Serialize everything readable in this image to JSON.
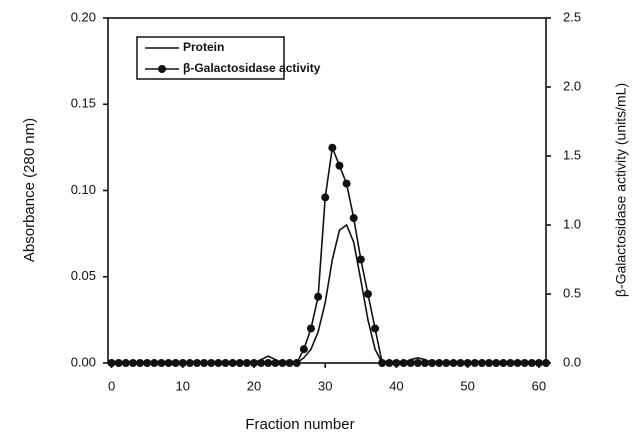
{
  "chart_data": {
    "type": "line",
    "x_label": "Fraction number",
    "y_label": "Absorbance (280 nm)",
    "y2_label": "β-Galactosidase activity (units/mL)",
    "xlim": [
      -0.5,
      61
    ],
    "xticks": [
      0,
      10,
      20,
      30,
      40,
      50,
      60
    ],
    "ylim": [
      0,
      0.2
    ],
    "yticks": [
      {
        "value": 0,
        "label": "0.00"
      },
      0.05,
      {
        "value": 0.1,
        "label": "0.10"
      },
      0.15,
      {
        "value": 0.2,
        "label": "0.20"
      }
    ],
    "y2lim": [
      0,
      2.5
    ],
    "y2ticks": [
      {
        "value": 0,
        "label": "0.0"
      },
      0.5,
      {
        "value": 1,
        "label": "1.0"
      },
      1.5,
      {
        "value": 2,
        "label": "2.0"
      },
      2.5
    ],
    "legend": "upper left",
    "series": [
      {
        "name": "Protein",
        "color": "#111111",
        "marker": false,
        "x": [
          0,
          20,
          21,
          22,
          23,
          24,
          26,
          27,
          28,
          29,
          30,
          31,
          32,
          33,
          34,
          35,
          36,
          37,
          38,
          41,
          42,
          43,
          44,
          45,
          61
        ],
        "values": [
          0,
          0,
          0.002,
          0.004,
          0.002,
          0,
          0,
          0.003,
          0.008,
          0.018,
          0.035,
          0.06,
          0.077,
          0.08,
          0.07,
          0.048,
          0.025,
          0.008,
          0,
          0,
          0.002,
          0.003,
          0.002,
          0,
          0
        ]
      },
      {
        "name": "β-Galactosidase activity",
        "color": "#111111",
        "marker": true,
        "axis": "y2",
        "x": [
          0,
          1,
          2,
          3,
          4,
          5,
          6,
          7,
          8,
          9,
          10,
          11,
          12,
          13,
          14,
          15,
          16,
          17,
          18,
          19,
          20,
          21,
          22,
          23,
          24,
          25,
          26,
          27,
          28,
          29,
          30,
          31,
          32,
          33,
          34,
          35,
          36,
          37,
          38,
          39,
          40,
          41,
          42,
          43,
          44,
          45,
          46,
          47,
          48,
          49,
          50,
          51,
          52,
          53,
          54,
          55,
          56,
          57,
          58,
          59,
          60,
          61
        ],
        "values": [
          0,
          0,
          0,
          0,
          0,
          0,
          0,
          0,
          0,
          0,
          0,
          0,
          0,
          0,
          0,
          0,
          0,
          0,
          0,
          0,
          0,
          0,
          0,
          0,
          0,
          0,
          0,
          0.1,
          0.25,
          0.48,
          1.2,
          1.56,
          1.43,
          1.3,
          1.05,
          0.75,
          0.5,
          0.25,
          0,
          0,
          0,
          0,
          0,
          0,
          0,
          0,
          0,
          0,
          0,
          0,
          0,
          0,
          0,
          0,
          0,
          0,
          0,
          0,
          0,
          0,
          0,
          0
        ]
      }
    ]
  }
}
